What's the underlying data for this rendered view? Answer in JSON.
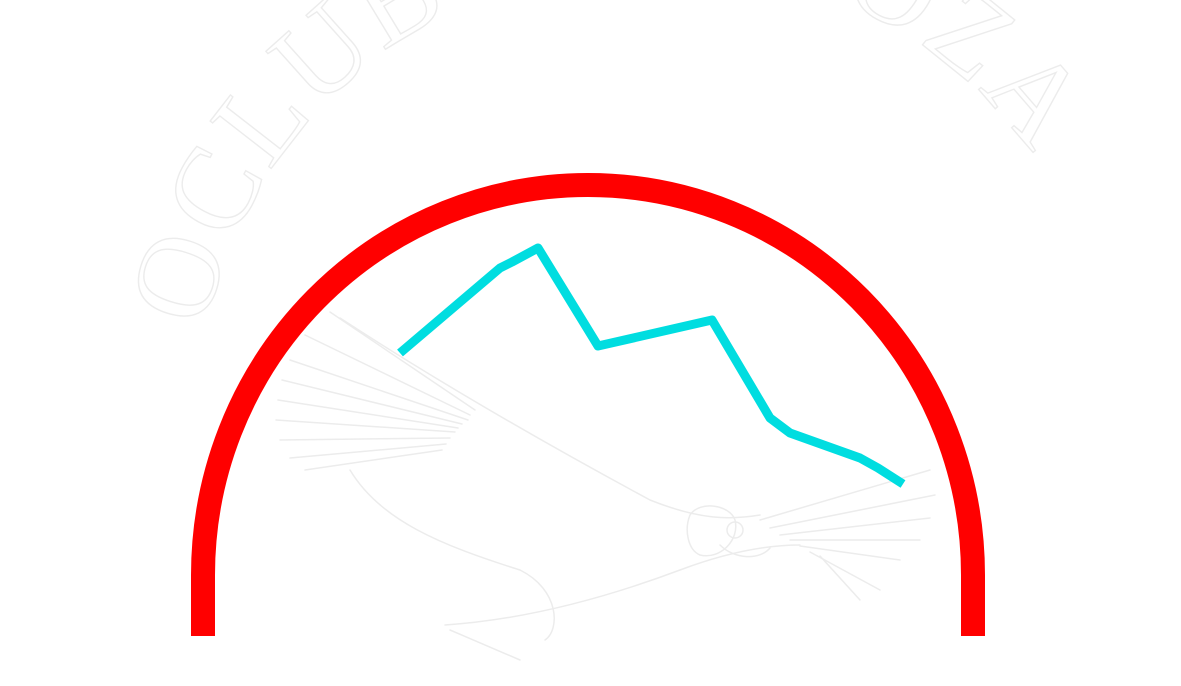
{
  "logo": {
    "title": "OCLUB MENDOZA",
    "colors": {
      "background": "#ffffff",
      "arc": "#ff0000",
      "mountain": "#00dde0",
      "emboss_outline": "#ececec"
    },
    "icons": [
      "condor-icon",
      "mountain-ridge-icon",
      "red-arc"
    ]
  }
}
